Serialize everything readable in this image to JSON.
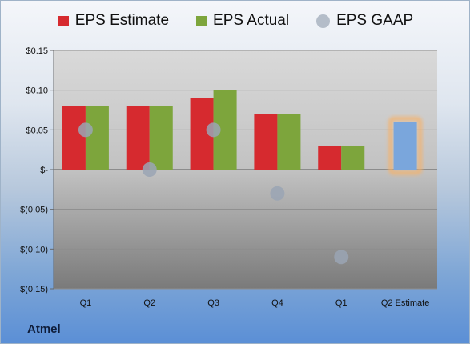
{
  "legend": {
    "estimate": "EPS Estimate",
    "actual": "EPS Actual",
    "gaap": "EPS GAAP"
  },
  "company": "Atmel",
  "colors": {
    "estimate": "#d62a2f",
    "actual": "#7da53c",
    "gaap": "#9aa5b4",
    "estimate_highlight": "#7aa6dc",
    "highlight_glow": "#f6b26b"
  },
  "chart_data": {
    "type": "bar",
    "categories": [
      "Q1",
      "Q2",
      "Q3",
      "Q4",
      "Q1",
      "Q2 Estimate"
    ],
    "series": [
      {
        "name": "EPS Estimate",
        "values": [
          0.08,
          0.08,
          0.09,
          0.07,
          0.03,
          null
        ]
      },
      {
        "name": "EPS Actual",
        "values": [
          0.08,
          0.08,
          0.1,
          0.07,
          0.03,
          null
        ]
      },
      {
        "name": "EPS GAAP",
        "values": [
          0.05,
          0.0,
          0.05,
          -0.03,
          -0.11,
          null
        ]
      }
    ],
    "forward_estimate": {
      "category": "Q2 Estimate",
      "value": 0.06
    },
    "ylim": [
      -0.15,
      0.15
    ],
    "yticks": [
      0.15,
      0.1,
      0.05,
      0,
      -0.05,
      -0.1,
      -0.15
    ],
    "ytick_labels": [
      "$0.15",
      "$0.10",
      "$0.05",
      "$-",
      "$(0.05)",
      "$(0.10)",
      "$(0.15)"
    ],
    "grid": true,
    "legend_position": "top"
  }
}
